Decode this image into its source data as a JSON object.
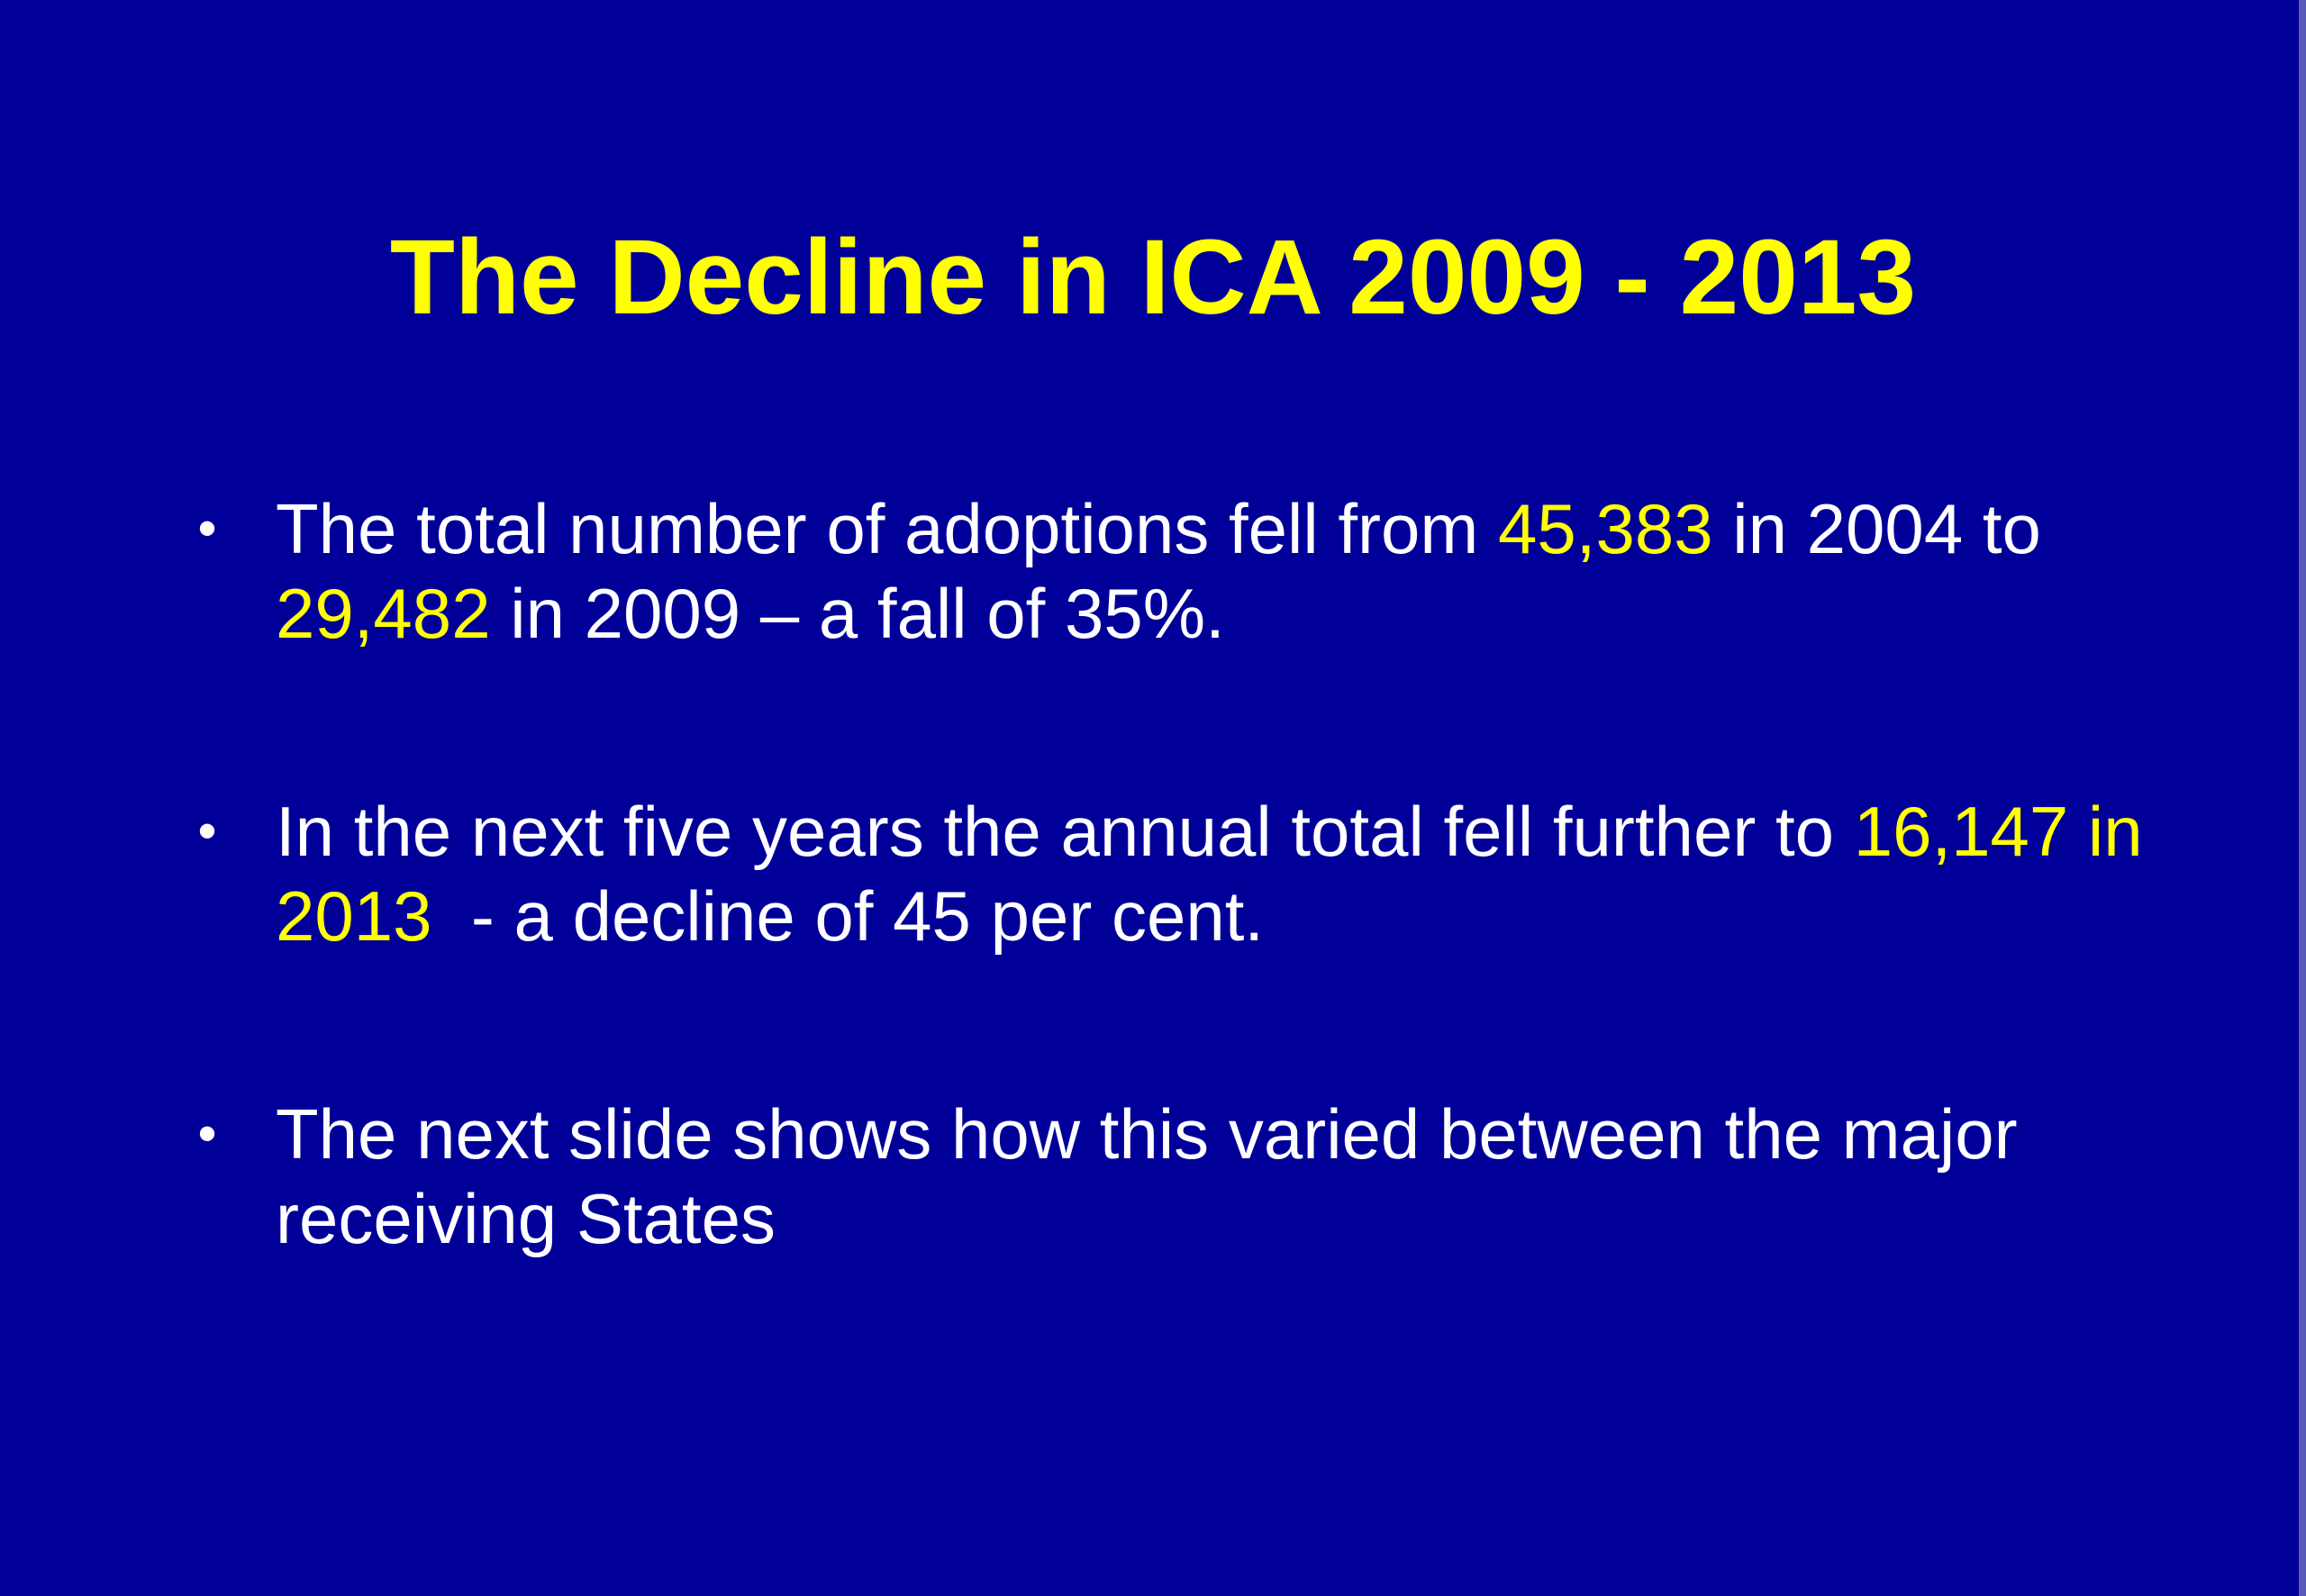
{
  "slide": {
    "title": "The Decline in ICA 2009 - 2013",
    "bullet_glyph": "•",
    "bullets": [
      {
        "t1": "The total number of adoptions fell from ",
        "h1": "45,383",
        "t2": " in 2004 to ",
        "h2": "29,482",
        "t3": " in 2009 – a fall of 35%."
      },
      {
        "t1": "In the next five years the annual total fell further to ",
        "h1": "16,147 in 2013",
        "t2": "  - a decline of 45 per cent."
      },
      {
        "t1": "The next slide shows how this varied between the major receiving States"
      }
    ]
  },
  "colors": {
    "background": "#000099",
    "title": "#ffff00",
    "body_text": "#ffffff",
    "highlight": "#ffff00"
  }
}
